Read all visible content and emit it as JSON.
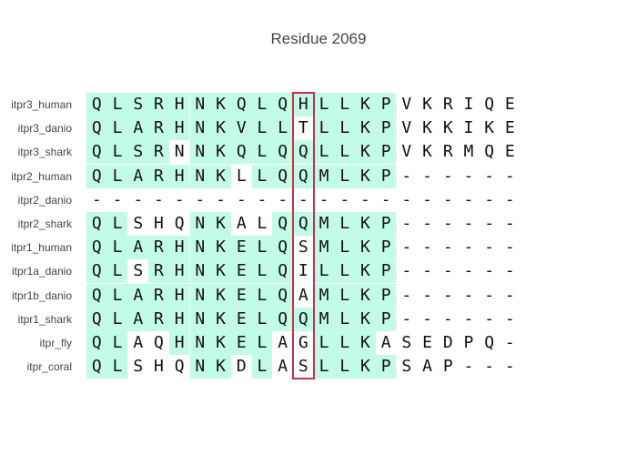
{
  "title": "Residue 2069",
  "colors": {
    "conserved_bg": "#c2fbe6",
    "highlight_border": "#c8304e",
    "text": "#111111"
  },
  "sequences": [
    {
      "name": "itpr3_human",
      "residues": "QLSRHNKQLQHLLKPVKRIQE",
      "shaded": "111111111111111000000"
    },
    {
      "name": "itpr3_danio",
      "residues": "QLARHNKVLLTLLKPVKKIKE",
      "shaded": "111111111101111000000"
    },
    {
      "name": "itpr3_shark",
      "residues": "QLSRNNKQLQQLLKPVKRMQE",
      "shaded": "111101111111111000000"
    },
    {
      "name": "itpr2_human",
      "residues": "QLARHNKLLQQMLKP------",
      "shaded": "111111101111111000000"
    },
    {
      "name": "itpr2_danio",
      "residues": "---------------------",
      "shaded": "000000000000000000000"
    },
    {
      "name": "itpr2_shark",
      "residues": "QLSHQNKALQQMLKP------",
      "shaded": "110001100111111000000"
    },
    {
      "name": "itpr1_human",
      "residues": "QLARHNKELQSMLKP------",
      "shaded": "111111111101111000000"
    },
    {
      "name": "itpr1a_danio",
      "residues": "QLSRHNKELQILLKP------",
      "shaded": "110111111101111000000"
    },
    {
      "name": "itpr1b_danio",
      "residues": "QLARHNKELQAMLKP------",
      "shaded": "111111111101111000000"
    },
    {
      "name": "itpr1_shark",
      "residues": "QLARHNKELQQMLKP------",
      "shaded": "111111111111111000000"
    },
    {
      "name": "itpr_fly",
      "residues": "QLAQHNKELAGLLKASEDPQ-",
      "shaded": "110011111001110000000"
    },
    {
      "name": "itpr_coral",
      "residues": "QLSHQNKDLASLLKPSAP---",
      "shaded": "110001101001111000000"
    }
  ],
  "highlight_column": 10
}
